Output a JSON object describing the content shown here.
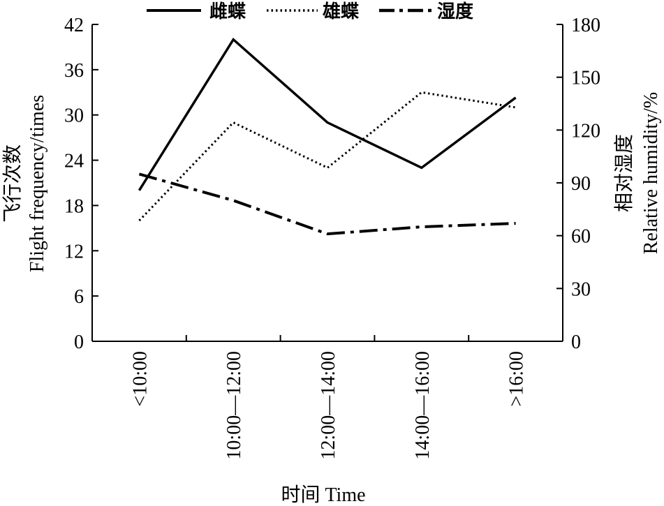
{
  "chart_data": {
    "type": "line",
    "categories": [
      "<10:00",
      "10:00—12:00",
      "12:00—14:00",
      "14:00—16:00",
      ">16:00"
    ],
    "xlabel": "时间 Time",
    "ylabel_left": [
      "飞行次数",
      "Flight frequency/times"
    ],
    "ylabel_right": [
      "相对湿度",
      "Relative humidity/%"
    ],
    "y_left": {
      "lim": [
        0,
        42
      ],
      "ticks": [
        0,
        6,
        12,
        18,
        24,
        30,
        36,
        42
      ]
    },
    "y_right": {
      "lim": [
        0,
        180
      ],
      "ticks": [
        0,
        30,
        60,
        90,
        120,
        150,
        180
      ]
    },
    "legend_position": "top",
    "series": [
      {
        "name": "雌蝶",
        "axis": "left",
        "style": "solid",
        "values": [
          20,
          40,
          29,
          23,
          32.3
        ]
      },
      {
        "name": "雄蝶",
        "axis": "left",
        "style": "dotted",
        "values": [
          16,
          29,
          23,
          33,
          31
        ]
      },
      {
        "name": "湿度",
        "axis": "right",
        "style": "dashdot",
        "values": [
          95,
          80,
          61,
          65,
          67
        ]
      }
    ]
  }
}
